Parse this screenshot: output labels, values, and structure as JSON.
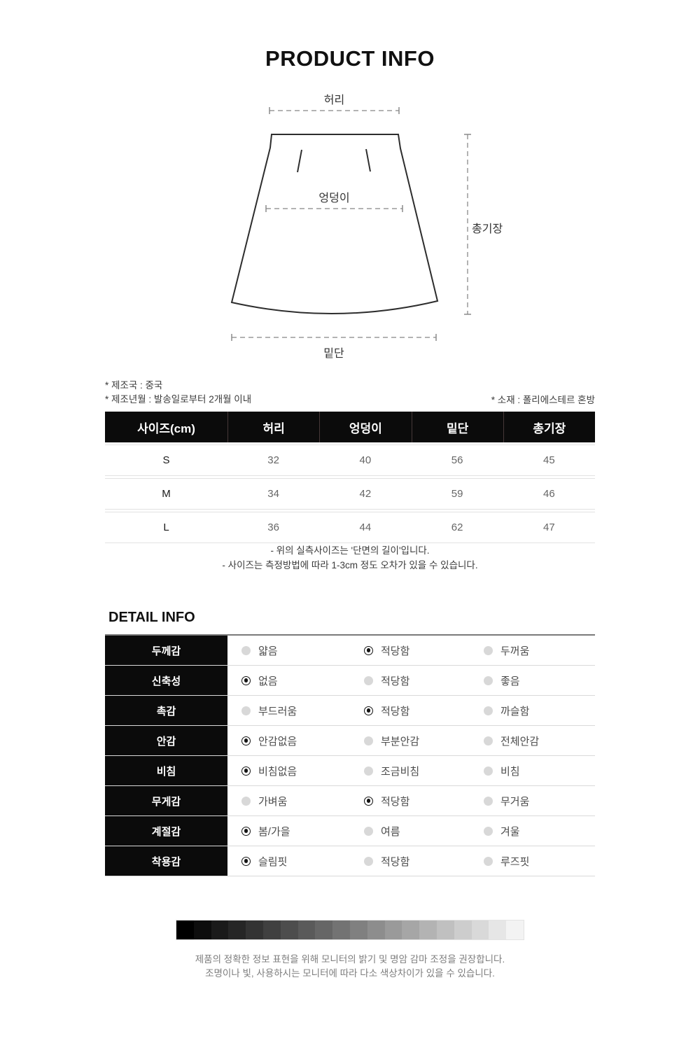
{
  "page": {
    "title": "PRODUCT INFO",
    "detail_title": "DETAIL INFO"
  },
  "diagram": {
    "labels": {
      "waist": "허리",
      "hip": "엉덩이",
      "length": "총기장",
      "hem": "밑단"
    }
  },
  "manufacture": {
    "country": "* 제조국 : 중국",
    "date": "* 제조년월 :  발송일로부터 2개월 이내",
    "material": "* 소재 : 폴리에스테르 혼방"
  },
  "size_table": {
    "headers": [
      "사이즈(cm)",
      "허리",
      "엉덩이",
      "밑단",
      "총기장"
    ],
    "rows": [
      {
        "size": "S",
        "values": [
          "32",
          "40",
          "56",
          "45"
        ]
      },
      {
        "size": "M",
        "values": [
          "34",
          "42",
          "59",
          "46"
        ]
      },
      {
        "size": "L",
        "values": [
          "36",
          "44",
          "62",
          "47"
        ]
      }
    ],
    "notes": [
      "- 위의 실측사이즈는 '단면의 길이'입니다.",
      "- 사이즈는 측정방법에 따라 1-3cm 정도 오차가 있을 수 있습니다."
    ]
  },
  "detail_table": {
    "rows": [
      {
        "label": "두께감",
        "options": [
          "얇음",
          "적당함",
          "두꺼움"
        ],
        "selected": 1
      },
      {
        "label": "신축성",
        "options": [
          "없음",
          "적당함",
          "좋음"
        ],
        "selected": 0
      },
      {
        "label": "촉감",
        "options": [
          "부드러움",
          "적당함",
          "까슬함"
        ],
        "selected": 1
      },
      {
        "label": "안감",
        "options": [
          "안감없음",
          "부분안감",
          "전체안감"
        ],
        "selected": 0
      },
      {
        "label": "비침",
        "options": [
          "비침없음",
          "조금비침",
          "비침"
        ],
        "selected": 0
      },
      {
        "label": "무게감",
        "options": [
          "가벼움",
          "적당함",
          "무거움"
        ],
        "selected": 1
      },
      {
        "label": "계절감",
        "options": [
          "봄/가을",
          "여름",
          "겨울"
        ],
        "selected": 0
      },
      {
        "label": "착용감",
        "options": [
          "슬림핏",
          "적당함",
          "루즈핏"
        ],
        "selected": 0
      }
    ]
  },
  "colors": {
    "table_header_bg": "#0b0b0b",
    "radio_selected": "#141414",
    "radio_unselected": "#d8d8d8"
  },
  "grayscale": {
    "shades": [
      "#000000",
      "#0d0d0d",
      "#1a1a1a",
      "#262626",
      "#333333",
      "#404040",
      "#4d4d4d",
      "#5a5a5a",
      "#666666",
      "#737373",
      "#808080",
      "#8d8d8d",
      "#9a9a9a",
      "#a6a6a6",
      "#b3b3b3",
      "#c0c0c0",
      "#cdcdcd",
      "#d9d9d9",
      "#e6e6e6",
      "#f3f3f3"
    ]
  },
  "footer": {
    "lines": [
      "제품의 정확한 정보 표현을 위해 모니터의 밝기 및 명암 감마 조정을 권장합니다.",
      "조명이나 빛, 사용하시는 모니터에 따라 다소 색상차이가 있을 수 있습니다."
    ]
  }
}
